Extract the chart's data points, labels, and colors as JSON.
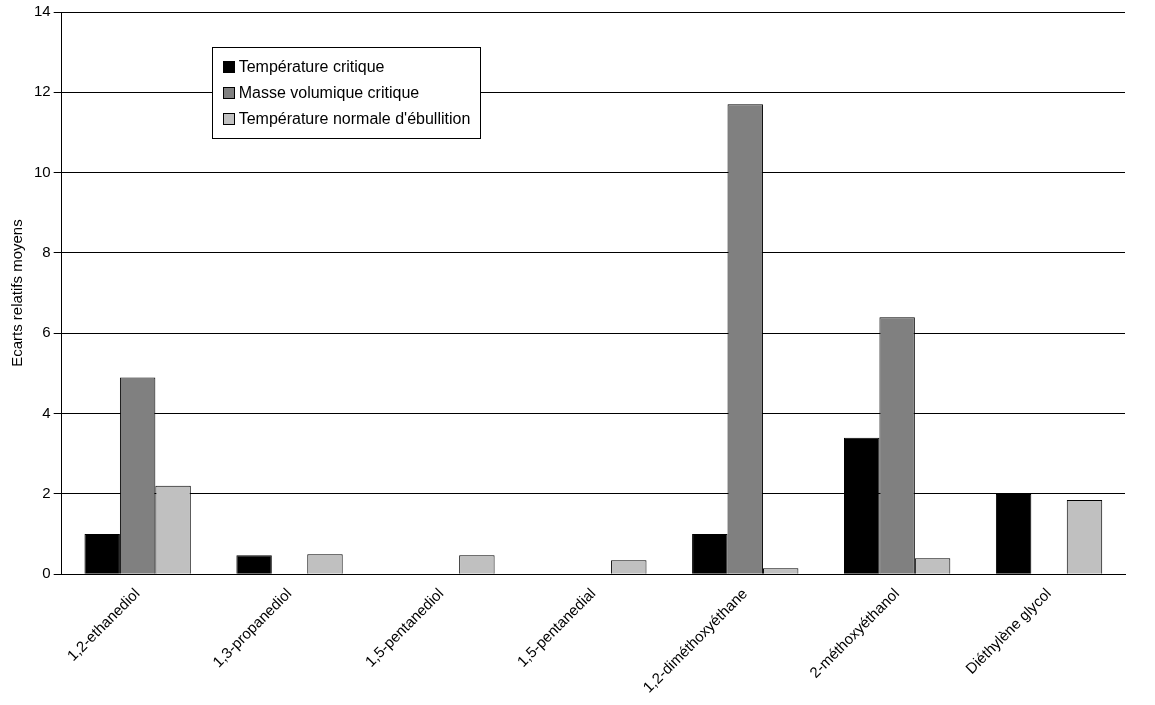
{
  "chart_data": {
    "type": "bar",
    "ylabel": "Ecarts relatifs moyens",
    "categories": [
      "1,2-ethanediol",
      "1,3-propanediol",
      "1,5-pentanediol",
      "1,5-pentanedial",
      "1,2-diméthoxyéthane",
      "2-méthoxyéthanol",
      "Diéthylène glycol"
    ],
    "series": [
      {
        "name": "Température critique",
        "color": "#000000",
        "values": [
          1.0,
          0.47,
          0,
          0,
          1.0,
          3.4,
          2.0
        ]
      },
      {
        "name": "Masse volumique critique",
        "color": "#808080",
        "values": [
          4.9,
          0,
          0,
          0,
          11.7,
          6.4,
          0
        ]
      },
      {
        "name": "Température normale d'ébullition",
        "color": "#c0c0c0",
        "values": [
          2.2,
          0.5,
          0.47,
          0.35,
          0.15,
          0.4,
          1.85
        ]
      }
    ],
    "ylim": [
      0,
      14
    ],
    "yticks": [
      0,
      2,
      4,
      6,
      8,
      10,
      12,
      14
    ],
    "grid": "y",
    "legend": "top left"
  }
}
